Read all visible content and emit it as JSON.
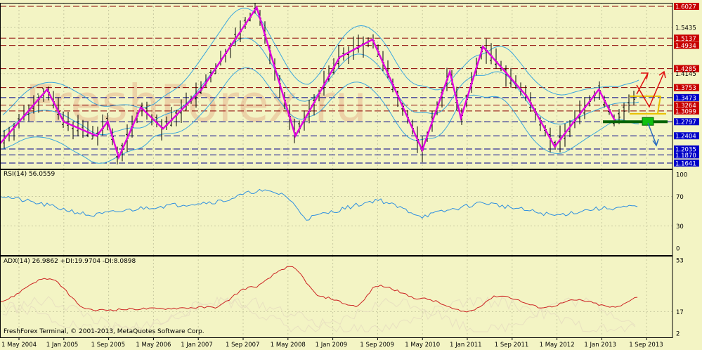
{
  "watermark": "FreshForex.ru",
  "copyright": "FreshForex Terminal, © 2001-2013, MetaQuotes Software Corp.",
  "colors": {
    "background": "#f3f4c4",
    "grid": "#c8c9a0",
    "border": "#000000",
    "price_zigzag": "#e000e0",
    "bollinger": "#3aa6dd",
    "rsi": "#2e8fe0",
    "adx": "#cc2222",
    "di_faint": "#e8e0c0",
    "resistance": "#8b0000",
    "support": "#00008b",
    "label_red": "#c80000",
    "label_blue": "#0000c8",
    "label_black": "#000000",
    "arrow_red": "#e01010",
    "arrow_blue": "#2a6cc0",
    "box_green": "#10c010",
    "zone_yellow": "#e8c000",
    "watermark": "#e8b890"
  },
  "x_axis_labels": [
    "1 May 2004",
    "1 Jan 2005",
    "1 Sep 2005",
    "1 May 2006",
    "1 Jan 2007",
    "1 Sep 2007",
    "1 May 2008",
    "1 Jan 2009",
    "1 Sep 2009",
    "1 May 2010",
    "1 Jan 2011",
    "1 Sep 2011",
    "1 May 2012",
    "1 Jan 2013",
    "1 Sep 2013"
  ],
  "price_panel": {
    "scale_labels": [
      "1.5435",
      "1.4145"
    ],
    "levels": [
      {
        "value": "1.6027",
        "kind": "resistance"
      },
      {
        "value": "1.5137",
        "kind": "resistance"
      },
      {
        "value": "1.4934",
        "kind": "resistance"
      },
      {
        "value": "1.4285",
        "kind": "resistance"
      },
      {
        "value": "1.3753",
        "kind": "resistance"
      },
      {
        "value": "1.3473",
        "kind": "support"
      },
      {
        "value": "1.3264",
        "kind": "resistance"
      },
      {
        "value": "1.3099",
        "kind": "resistance"
      },
      {
        "value": "1.2797",
        "kind": "support"
      },
      {
        "value": "1.2404",
        "kind": "support"
      },
      {
        "value": "1.2035",
        "kind": "support"
      },
      {
        "value": "1.1870",
        "kind": "support"
      },
      {
        "value": "1.1641",
        "kind": "support"
      }
    ]
  },
  "rsi_panel": {
    "title": "RSI(14) 56.0559",
    "scale_labels": [
      "100",
      "70",
      "30",
      "0"
    ]
  },
  "adx_panel": {
    "title": "ADX(14) 26.9862 +DI:19.9704 -DI:8.0898",
    "scale_labels": [
      "53",
      "17",
      "2"
    ]
  },
  "chart_data": [
    {
      "type": "line",
      "name": "price",
      "x": [
        "2004-01",
        "2004-10",
        "2005-01",
        "2005-07",
        "2005-09",
        "2005-11",
        "2006-03",
        "2006-07",
        "2007-02",
        "2007-12",
        "2008-07",
        "2009-03",
        "2009-09",
        "2010-06",
        "2010-11",
        "2011-01",
        "2011-05",
        "2012-01",
        "2012-06",
        "2013-02",
        "2013-05",
        "2013-09"
      ],
      "series": [
        {
          "name": "",
          "values": [
            1.21,
            1.37,
            1.28,
            1.24,
            1.28,
            1.18,
            1.32,
            1.26,
            1.37,
            1.6,
            1.24,
            1.46,
            1.51,
            1.2,
            1.42,
            1.29,
            1.49,
            1.35,
            1.21,
            1.37,
            1.28,
            1.355
          ]
        }
      ],
      "levels": [
        1.6027,
        1.5137,
        1.4934,
        1.4285,
        1.3753,
        1.3473,
        1.3264,
        1.3099,
        1.2797,
        1.2404,
        1.2035,
        1.187,
        1.1641
      ],
      "ylim": [
        1.16,
        1.61
      ],
      "xlabel": "",
      "ylabel": "",
      "grid": true
    },
    {
      "type": "line",
      "name": "rsi",
      "x": [
        "2004-01",
        "2004-10",
        "2005-06",
        "2006-04",
        "2007-06",
        "2007-12",
        "2008-05",
        "2008-09",
        "2009-10",
        "2010-06",
        "2011-05",
        "2012-06",
        "2013-01",
        "2013-09"
      ],
      "series": [
        {
          "name": "",
          "values": [
            72,
            58,
            44,
            55,
            64,
            78,
            73,
            40,
            66,
            43,
            62,
            44,
            53,
            56.06
          ]
        }
      ],
      "ylim": [
        0,
        100
      ],
      "reference_lines": [
        70,
        30
      ],
      "xlabel": "",
      "ylabel": "",
      "grid": true
    },
    {
      "type": "line",
      "name": "adx",
      "x": [
        "2004-01",
        "2004-10",
        "2005-06",
        "2006-04",
        "2007-04",
        "2007-11",
        "2008-06",
        "2008-12",
        "2009-06",
        "2009-10",
        "2010-06",
        "2011-02",
        "2011-08",
        "2012-04",
        "2012-10",
        "2013-05",
        "2013-09"
      ],
      "series": [
        {
          "name": "",
          "values": [
            24,
            40,
            18,
            19,
            20,
            34,
            48,
            27,
            21,
            35,
            26,
            17,
            28,
            20,
            25,
            20,
            26.99
          ]
        }
      ],
      "ylim": [
        2,
        53
      ],
      "xlabel": "",
      "ylabel": "",
      "grid": true
    }
  ]
}
